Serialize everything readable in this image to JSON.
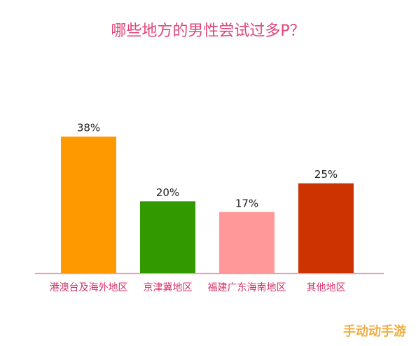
{
  "chart_data": {
    "type": "bar",
    "title": "哪些地方的男性尝试过多P？",
    "categories": [
      "港澳台及海外地区",
      "京津冀地区",
      "福建广东海南地区",
      "其他地区"
    ],
    "values": [
      38,
      20,
      17,
      25
    ],
    "value_labels": [
      "38%",
      "20%",
      "17%",
      "25%"
    ],
    "colors": [
      "#ff9900",
      "#339900",
      "#ff9999",
      "#cc3300"
    ],
    "watermark": "手动动手游"
  }
}
